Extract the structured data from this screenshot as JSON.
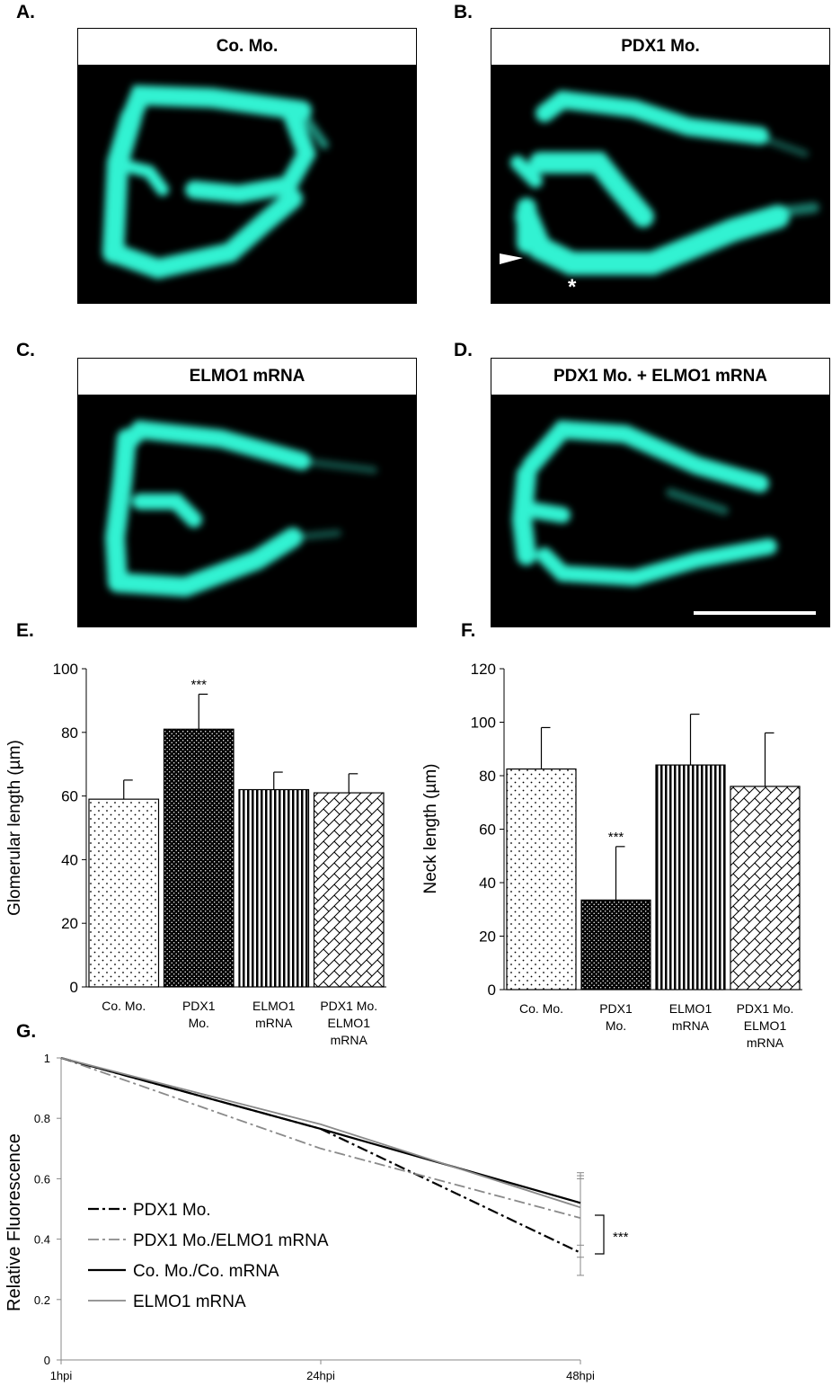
{
  "panels": {
    "A": {
      "letter": "A.",
      "title": "Co. Mo."
    },
    "B": {
      "letter": "B.",
      "title": "PDX1 Mo."
    },
    "C": {
      "letter": "C.",
      "title": "ELMO1 mRNA"
    },
    "D": {
      "letter": "D.",
      "title": "PDX1 Mo. + ELMO1  mRNA"
    },
    "E": {
      "letter": "E."
    },
    "F": {
      "letter": "F."
    },
    "G": {
      "letter": "G."
    }
  },
  "colors": {
    "fluorescence": "#33f2d2",
    "background": "#000000"
  },
  "annotations": {
    "asterisk": "*",
    "arrowhead": "white-arrowhead-icon"
  },
  "chart_data": [
    {
      "type": "bar",
      "panel": "E",
      "ylabel": "Glomerular length (µm)",
      "ylim": [
        0,
        100
      ],
      "yticks": [
        0,
        20,
        40,
        60,
        80,
        100
      ],
      "categories": [
        [
          "Co. Mo."
        ],
        [
          "PDX1",
          "Mo."
        ],
        [
          "ELMO1",
          "mRNA"
        ],
        [
          "PDX1  Mo.",
          "ELMO1",
          "mRNA"
        ]
      ],
      "values": [
        59,
        81,
        62,
        61
      ],
      "errors": [
        6,
        11,
        5.5,
        6
      ],
      "patterns": [
        "sparse-dots",
        "dense-dots",
        "vertical-lines",
        "crosshatch"
      ],
      "significance": [
        null,
        "***",
        null,
        null
      ]
    },
    {
      "type": "bar",
      "panel": "F",
      "ylabel": "Neck length (µm)",
      "ylim": [
        0,
        120
      ],
      "yticks": [
        0,
        20,
        40,
        60,
        80,
        100,
        120
      ],
      "categories": [
        [
          "Co. Mo."
        ],
        [
          "PDX1",
          "Mo."
        ],
        [
          "ELMO1",
          "mRNA"
        ],
        [
          "PDX1  Mo.",
          "ELMO1",
          "mRNA"
        ]
      ],
      "values": [
        82.5,
        33.5,
        84,
        76
      ],
      "errors": [
        15.5,
        20,
        19,
        20
      ],
      "patterns": [
        "sparse-dots",
        "dense-dots",
        "vertical-lines",
        "crosshatch"
      ],
      "significance": [
        null,
        "***",
        null,
        null
      ]
    },
    {
      "type": "line",
      "panel": "G",
      "ylabel": "Relative Fluorescence",
      "ylim": [
        0,
        1
      ],
      "yticks": [
        "0",
        "0.2",
        "0.4",
        "0.6",
        "0.8",
        "1"
      ],
      "x": [
        "1hpi",
        "24hpi",
        "48hpi"
      ],
      "series": [
        {
          "name": "PDX1 Mo.",
          "values": [
            1,
            0.765,
            0.355
          ],
          "style": "dashdot",
          "color": "#000000",
          "width": 2.2
        },
        {
          "name": "PDX1 Mo./ELMO1 mRNA",
          "values": [
            1,
            0.7,
            0.47
          ],
          "style": "dashdot",
          "color": "#8a8a8a",
          "width": 1.8
        },
        {
          "name": "Co. Mo./Co. mRNA",
          "values": [
            1,
            0.765,
            0.52
          ],
          "style": "solid",
          "color": "#000000",
          "width": 2.2
        },
        {
          "name": "ELMO1 mRNA",
          "values": [
            1,
            0.78,
            0.505
          ],
          "style": "solid",
          "color": "#8a8a8a",
          "width": 1.8
        }
      ],
      "significance": "***"
    }
  ]
}
